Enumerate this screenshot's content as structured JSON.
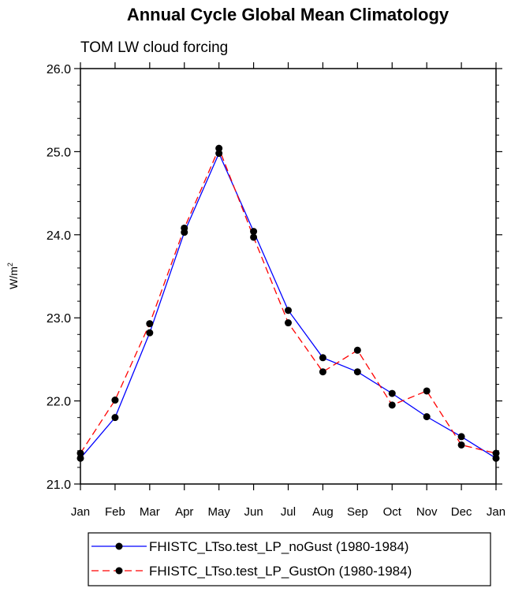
{
  "chart_data": {
    "type": "line",
    "title": "Annual Cycle Global Mean Climatology",
    "subtitle": "TOM LW cloud forcing",
    "ylabel_base": "W/m",
    "ylabel_sup": "2",
    "categories": [
      "Jan",
      "Feb",
      "Mar",
      "Apr",
      "May",
      "Jun",
      "Jul",
      "Aug",
      "Sep",
      "Oct",
      "Nov",
      "Dec",
      "Jan"
    ],
    "ylim": [
      21.0,
      26.0
    ],
    "yticks": [
      "21.0",
      "22.0",
      "23.0",
      "24.0",
      "25.0",
      "26.0"
    ],
    "grid": false,
    "legend_position": "bottom",
    "series": [
      {
        "name": "FHISTC_LTso.test_LP_noGust (1980-1984)",
        "color": "#0000ff",
        "dash": "solid",
        "values": [
          21.31,
          21.8,
          22.82,
          24.03,
          24.98,
          24.04,
          23.09,
          22.52,
          22.35,
          22.09,
          21.81,
          21.57,
          21.31
        ]
      },
      {
        "name": "FHISTC_LTso.test_LP_GustOn (1980-1984)",
        "color": "#ff0000",
        "dash": "dashed",
        "values": [
          21.37,
          22.01,
          22.93,
          24.08,
          25.04,
          23.97,
          22.94,
          22.35,
          22.61,
          21.95,
          22.12,
          21.47,
          21.37
        ]
      }
    ]
  }
}
